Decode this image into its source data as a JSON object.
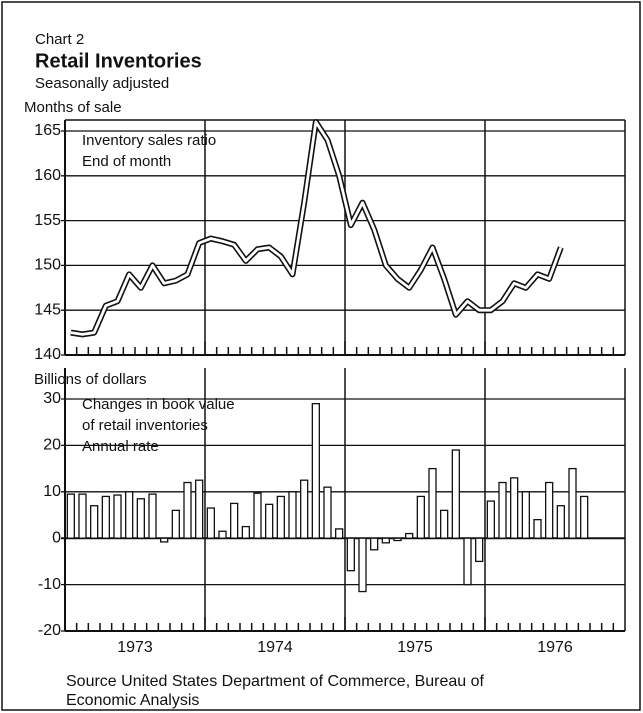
{
  "header": {
    "label": "Chart 2",
    "title": "Retail Inventories",
    "subtitle": "Seasonally adjusted"
  },
  "source": [
    "Source  United States Department of Commerce, Bureau of",
    "Economic Analysis"
  ],
  "chart_data": [
    {
      "type": "line",
      "y_label": "Months of sale",
      "annotation": [
        "Inventory sales ratio",
        "End of month"
      ],
      "categories": [
        null,
        null,
        null,
        null,
        null,
        null,
        null,
        null,
        null,
        null,
        null,
        null,
        null,
        null,
        null,
        null,
        null,
        null,
        null,
        null,
        null,
        null,
        null,
        null,
        null,
        null,
        null,
        null,
        null,
        null,
        null,
        null,
        null,
        null,
        null,
        null,
        null,
        null,
        null,
        null,
        null,
        null,
        null,
        null,
        null
      ],
      "series": [
        {
          "name": "Inventory sales ratio",
          "color": "#111111",
          "values": [
            142.5,
            142.3,
            142.5,
            145.5,
            146,
            149,
            147.5,
            150,
            148,
            148.3,
            149,
            152.5,
            153,
            152.7,
            152.3,
            150.5,
            151.8,
            152,
            151,
            149,
            157,
            166,
            164,
            160,
            154.5,
            157,
            154,
            150,
            148.5,
            147.5,
            149.5,
            152,
            148.5,
            144.5,
            146,
            145,
            145,
            146,
            148,
            147.5,
            149,
            148.5,
            152,
            null,
            null
          ]
        }
      ],
      "ylim": [
        140,
        165
      ],
      "yticks": [
        140,
        145,
        150,
        155,
        160,
        165
      ],
      "grid": true
    },
    {
      "type": "bar",
      "y_label": "Billions of dollars",
      "annotation": [
        "Changes in book value",
        "of retail inventories",
        "Annual rate"
      ],
      "categories": [
        null,
        null,
        null,
        null,
        null,
        null,
        "1973",
        null,
        null,
        null,
        null,
        null,
        null,
        null,
        null,
        null,
        null,
        null,
        "1974",
        null,
        null,
        null,
        null,
        null,
        null,
        null,
        null,
        null,
        null,
        null,
        "1975",
        null,
        null,
        null,
        null,
        null,
        null,
        null,
        null,
        null,
        null,
        null,
        "1976",
        null,
        null
      ],
      "values": [
        9.5,
        9.5,
        7,
        9,
        9.3,
        10,
        8.5,
        9.5,
        -0.8,
        6,
        12,
        12.5,
        6.5,
        1.5,
        7.5,
        2.5,
        9.7,
        7.3,
        9,
        10,
        12.5,
        29,
        11,
        2,
        -7,
        -11.5,
        -2.5,
        -1,
        -0.5,
        1,
        9,
        15,
        6,
        19,
        -10,
        -5,
        8,
        12,
        13,
        10,
        4,
        12,
        7,
        15,
        9
      ],
      "color": "#ffffff",
      "ylim": [
        -20,
        30
      ],
      "yticks": [
        -20,
        -10,
        0,
        10,
        20,
        30
      ],
      "grid": true
    }
  ]
}
